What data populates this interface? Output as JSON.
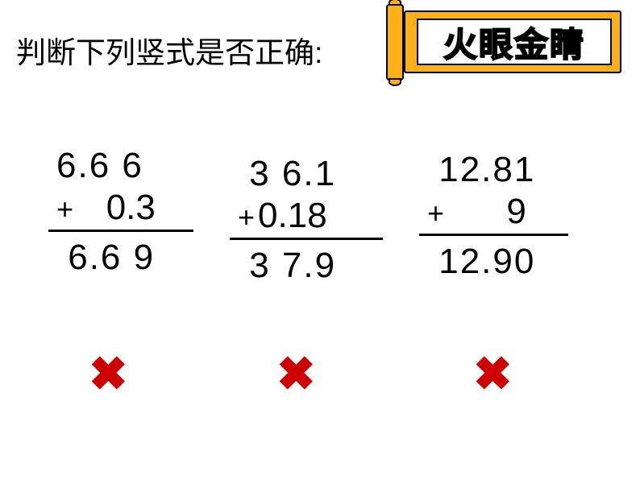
{
  "title": "判断下列竖式是否正确:",
  "banner_text": "火眼金睛",
  "colors": {
    "background": "#ffffff",
    "text": "#000000",
    "banner_fill": "#fbb017",
    "banner_inner": "#ffffff",
    "cross_mark": "#cc0000"
  },
  "problems": [
    {
      "top_number": "6.6 6",
      "operator": "+",
      "addend_display": "   0.3",
      "result": " 6.6 9",
      "judgment": "✖"
    },
    {
      "top_number": " 3 6.1",
      "operator": "+",
      "addend_display": "0.18",
      "result": " 3 7.9",
      "judgment": "✖"
    },
    {
      "top_number": " 12.81",
      "operator": "+",
      "addend_display": "      9",
      "result": " 12.90",
      "judgment": "✖"
    }
  ],
  "typography": {
    "title_fontsize": 37,
    "number_fontsize": 44,
    "plus_fontsize": 36,
    "cross_fontsize": 58,
    "banner_text_fontsize": 42
  }
}
